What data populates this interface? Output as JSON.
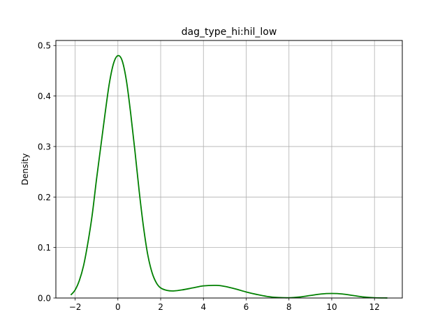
{
  "chart_data": {
    "type": "line",
    "title": "dag_type_hi:hil_low",
    "xlabel": "",
    "ylabel": "Density",
    "xlim": [
      -2.9,
      13.3
    ],
    "ylim": [
      0,
      0.51
    ],
    "xticks": [
      -2,
      0,
      2,
      4,
      6,
      8,
      10,
      12
    ],
    "xtick_labels": [
      "−2",
      "0",
      "2",
      "4",
      "6",
      "8",
      "10",
      "12"
    ],
    "yticks": [
      0.0,
      0.1,
      0.2,
      0.3,
      0.4,
      0.5
    ],
    "ytick_labels": [
      "0.0",
      "0.1",
      "0.2",
      "0.3",
      "0.4",
      "0.5"
    ],
    "grid": true,
    "legend": "none",
    "series": [
      {
        "color": "#008000",
        "x": [
          -2.2,
          -2.0,
          -1.8,
          -1.6,
          -1.4,
          -1.2,
          -1.0,
          -0.8,
          -0.6,
          -0.4,
          -0.2,
          0.0,
          0.2,
          0.4,
          0.6,
          0.8,
          1.0,
          1.2,
          1.4,
          1.6,
          1.8,
          2.0,
          2.3,
          2.6,
          3.0,
          3.5,
          4.0,
          4.6,
          5.0,
          5.5,
          6.0,
          6.5,
          7.0,
          7.5,
          8.0,
          8.5,
          9.0,
          9.5,
          10.0,
          10.5,
          11.0,
          11.5,
          12.0,
          12.6
        ],
        "y": [
          0.006,
          0.016,
          0.035,
          0.065,
          0.11,
          0.165,
          0.235,
          0.3,
          0.365,
          0.425,
          0.465,
          0.48,
          0.47,
          0.43,
          0.365,
          0.29,
          0.21,
          0.14,
          0.085,
          0.05,
          0.03,
          0.02,
          0.015,
          0.014,
          0.016,
          0.02,
          0.024,
          0.025,
          0.023,
          0.018,
          0.012,
          0.007,
          0.003,
          0.001,
          0.0005,
          0.002,
          0.005,
          0.008,
          0.009,
          0.008,
          0.005,
          0.002,
          0.0005,
          0.0001
        ]
      }
    ]
  }
}
